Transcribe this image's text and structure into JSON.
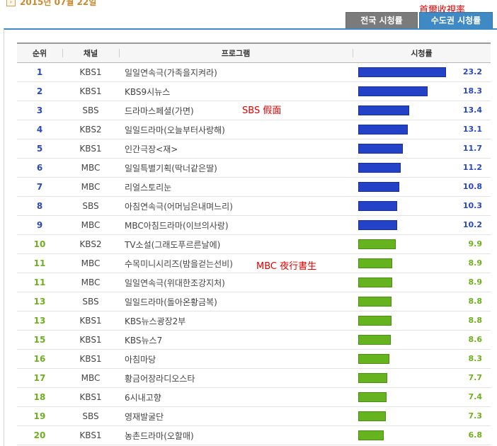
{
  "header": {
    "date": "2015년 07월 22일",
    "annotation": "首爾收視率"
  },
  "tabs": {
    "national": "전국 시청률",
    "metro": "수도권 시청률"
  },
  "annotations": {
    "sbs": "SBS 假面",
    "mbc": "MBC 夜行書生"
  },
  "columns": {
    "rank": "순위",
    "channel": "채널",
    "program": "프로그램",
    "rating": "시청률"
  },
  "colors": {
    "blue": "#2342c7",
    "green": "#66b320",
    "metro_tab": "#3f8ac4"
  },
  "rows": [
    {
      "rank": "1",
      "channel": "KBS1",
      "program": "일일연속극(가족을지켜라)",
      "rating": "23.2"
    },
    {
      "rank": "2",
      "channel": "KBS1",
      "program": "KBS9시뉴스",
      "rating": "18.3"
    },
    {
      "rank": "3",
      "channel": "SBS",
      "program": "드라마스페셜(가면)",
      "rating": "13.4"
    },
    {
      "rank": "4",
      "channel": "KBS2",
      "program": "일일드라마(오늘부터사랑해)",
      "rating": "13.1"
    },
    {
      "rank": "5",
      "channel": "KBS1",
      "program": "인간극장<재>",
      "rating": "11.7"
    },
    {
      "rank": "6",
      "channel": "MBC",
      "program": "일일특별기획(딱너같은딸)",
      "rating": "11.2"
    },
    {
      "rank": "7",
      "channel": "MBC",
      "program": "리얼스토리눈",
      "rating": "10.8"
    },
    {
      "rank": "8",
      "channel": "SBS",
      "program": "아침연속극(어머님은내며느리)",
      "rating": "10.3"
    },
    {
      "rank": "9",
      "channel": "MBC",
      "program": "MBC아침드라마(이브의사랑)",
      "rating": "10.2"
    },
    {
      "rank": "10",
      "channel": "KBS2",
      "program": "TV소설(그래도푸르른날에)",
      "rating": "9.9"
    },
    {
      "rank": "11",
      "channel": "MBC",
      "program": "수목미니시리즈(밤을걷는선비)",
      "rating": "8.9"
    },
    {
      "rank": "11",
      "channel": "MBC",
      "program": "일일연속극(위대한조강지처)",
      "rating": "8.9"
    },
    {
      "rank": "13",
      "channel": "SBS",
      "program": "일일드라마(돌아온황금복)",
      "rating": "8.8"
    },
    {
      "rank": "13",
      "channel": "KBS1",
      "program": "KBS뉴스광장2부",
      "rating": "8.8"
    },
    {
      "rank": "15",
      "channel": "KBS1",
      "program": "KBS뉴스7",
      "rating": "8.6"
    },
    {
      "rank": "16",
      "channel": "KBS1",
      "program": "아침마당",
      "rating": "8.3"
    },
    {
      "rank": "17",
      "channel": "MBC",
      "program": "황금어장라디오스타",
      "rating": "7.7"
    },
    {
      "rank": "18",
      "channel": "KBS1",
      "program": "6시내고향",
      "rating": "7.4"
    },
    {
      "rank": "19",
      "channel": "SBS",
      "program": "영재발굴단",
      "rating": "7.3"
    },
    {
      "rank": "20",
      "channel": "KBS1",
      "program": "농촌드라마(오할매)",
      "rating": "6.8"
    }
  ]
}
